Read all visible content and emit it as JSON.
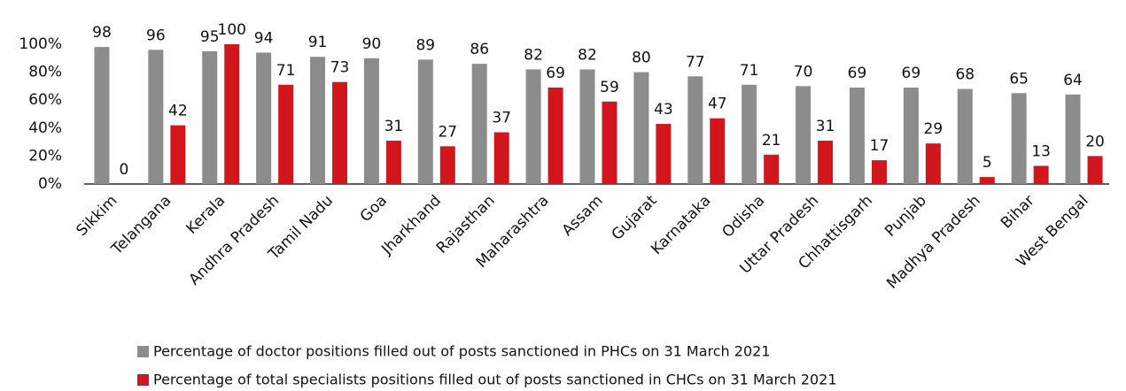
{
  "chart_data": {
    "type": "bar",
    "categories": [
      "Sikkim",
      "Telangana",
      "Kerala",
      "Andhra Pradesh",
      "Tamil Nadu",
      "Goa",
      "Jharkhand",
      "Rajasthan",
      "Maharashtra",
      "Assam",
      "Gujarat",
      "Karnataka",
      "Odisha",
      "Uttar Pradesh",
      "Chhattisgarh",
      "Punjab",
      "Madhya Pradesh",
      "Bihar",
      "West Bengal"
    ],
    "series": [
      {
        "name": "Percentage of doctor positions filled out of posts sanctioned in PHCs on 31 March 2021",
        "color": "#8c8c8c",
        "values": [
          98,
          96,
          95,
          94,
          91,
          90,
          89,
          86,
          82,
          82,
          80,
          77,
          71,
          70,
          69,
          69,
          68,
          65,
          64
        ]
      },
      {
        "name": "Percentage of total specialists positions filled out of posts sanctioned in CHCs on 31 March 2021",
        "color": "#d2161d",
        "values": [
          0,
          42,
          100,
          71,
          73,
          31,
          27,
          37,
          69,
          59,
          43,
          47,
          21,
          31,
          17,
          29,
          5,
          13,
          20
        ]
      }
    ],
    "ylim": [
      0,
      100
    ],
    "yticks": [
      {
        "value": 0,
        "label": "0%"
      },
      {
        "value": 20,
        "label": "20%"
      },
      {
        "value": 40,
        "label": "40%"
      },
      {
        "value": 60,
        "label": "60%"
      },
      {
        "value": 80,
        "label": "80%"
      },
      {
        "value": 100,
        "label": "100%"
      }
    ],
    "grid": false,
    "legend": "bottom"
  }
}
